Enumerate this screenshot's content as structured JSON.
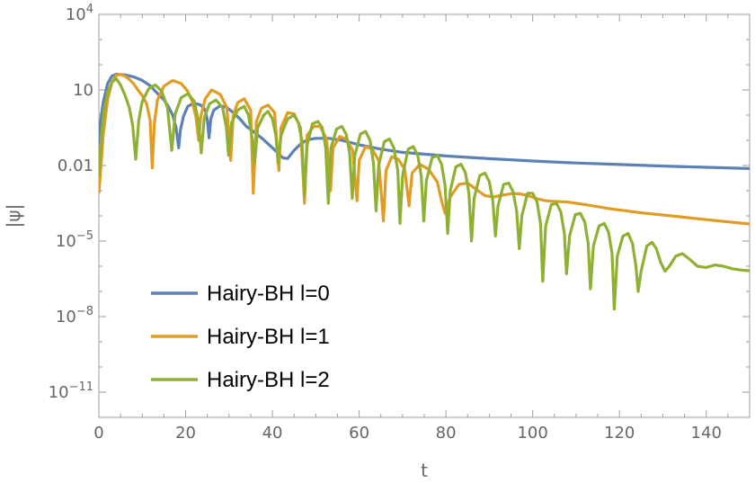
{
  "chart_data": {
    "type": "line",
    "xlabel": "t",
    "ylabel": "|ψ|",
    "xlim": [
      0,
      150
    ],
    "ylim_log10": [
      -12,
      4
    ],
    "y_scale": "log",
    "legend_position": "bottom-left",
    "grid": false,
    "x_ticks": [
      {
        "value": 0,
        "label": "0"
      },
      {
        "value": 20,
        "label": "20"
      },
      {
        "value": 40,
        "label": "40"
      },
      {
        "value": 60,
        "label": "60"
      },
      {
        "value": 80,
        "label": "80"
      },
      {
        "value": 100,
        "label": "100"
      },
      {
        "value": 120,
        "label": "120"
      },
      {
        "value": 140,
        "label": "140"
      }
    ],
    "y_ticks": [
      {
        "log10": 4,
        "base": "10",
        "exp": "4"
      },
      {
        "log10": 1,
        "base": "10",
        "exp": ""
      },
      {
        "log10": -2,
        "base": "0.01",
        "exp": ""
      },
      {
        "log10": -5,
        "base": "10",
        "exp": "−5"
      },
      {
        "log10": -8,
        "base": "10",
        "exp": "−8"
      },
      {
        "log10": -11,
        "base": "10",
        "exp": "−11"
      }
    ],
    "series": [
      {
        "name": "Hairy-BH l=0",
        "color": "#5e81b5",
        "points": [
          [
            0,
            -1.2
          ],
          [
            0.5,
            -0.1
          ],
          [
            1,
            0.5
          ],
          [
            2,
            1.25
          ],
          [
            3,
            1.55
          ],
          [
            4,
            1.62
          ],
          [
            6,
            1.6
          ],
          [
            8,
            1.52
          ],
          [
            10,
            1.38
          ],
          [
            12,
            1.15
          ],
          [
            13,
            0.95
          ],
          [
            14,
            0.78
          ],
          [
            15,
            0.6
          ],
          [
            16,
            0.35
          ],
          [
            17,
            0
          ],
          [
            17.8,
            -0.5
          ],
          [
            18.4,
            -1.3
          ],
          [
            18.8,
            -0.6
          ],
          [
            19.5,
            -0.05
          ],
          [
            20.5,
            0.35
          ],
          [
            22,
            0.48
          ],
          [
            23.5,
            0.4
          ],
          [
            24.5,
            0.2
          ],
          [
            25,
            -0.2
          ],
          [
            25.4,
            -0.9
          ],
          [
            25.8,
            -0.15
          ],
          [
            26.5,
            0.2
          ],
          [
            28,
            0.37
          ],
          [
            29.5,
            0.3
          ],
          [
            31,
            0.1
          ],
          [
            32.5,
            -0.15
          ],
          [
            34,
            -0.45
          ],
          [
            36,
            -0.7
          ],
          [
            38,
            -0.98
          ],
          [
            40,
            -1.3
          ],
          [
            41.5,
            -1.55
          ],
          [
            42.5,
            -1.7
          ],
          [
            43.5,
            -1.72
          ],
          [
            45,
            -1.4
          ],
          [
            46.5,
            -1.15
          ],
          [
            48,
            -0.98
          ],
          [
            50,
            -0.92
          ],
          [
            53,
            -0.92
          ],
          [
            56,
            -1.0
          ],
          [
            60,
            -1.18
          ],
          [
            65,
            -1.35
          ],
          [
            70,
            -1.48
          ],
          [
            80,
            -1.62
          ],
          [
            90,
            -1.73
          ],
          [
            100,
            -1.82
          ],
          [
            110,
            -1.9
          ],
          [
            120,
            -1.96
          ],
          [
            130,
            -2.02
          ],
          [
            140,
            -2.07
          ],
          [
            150,
            -2.12
          ]
        ]
      },
      {
        "name": "Hairy-BH l=1",
        "color": "#e19c24",
        "points": [
          [
            0,
            -3.1
          ],
          [
            0.5,
            -2.0
          ],
          [
            1,
            -0.8
          ],
          [
            2,
            0.6
          ],
          [
            3,
            1.3
          ],
          [
            4,
            1.58
          ],
          [
            5,
            1.62
          ],
          [
            6,
            1.55
          ],
          [
            7,
            1.42
          ],
          [
            8,
            1.25
          ],
          [
            9,
            1.0
          ],
          [
            10,
            0.78
          ],
          [
            11,
            0.45
          ],
          [
            11.8,
            -0.2
          ],
          [
            12.3,
            -2.1
          ],
          [
            12.8,
            -0.3
          ],
          [
            13.5,
            0.6
          ],
          [
            15,
            1.15
          ],
          [
            17,
            1.38
          ],
          [
            19,
            1.25
          ],
          [
            20.5,
            0.95
          ],
          [
            21.5,
            0.55
          ],
          [
            22.4,
            -0.1
          ],
          [
            23,
            -1.0
          ],
          [
            23.5,
            -0.05
          ],
          [
            24.5,
            0.65
          ],
          [
            26,
            1.0
          ],
          [
            28,
            0.82
          ],
          [
            29.5,
            0.3
          ],
          [
            30.4,
            -1.8
          ],
          [
            31,
            0
          ],
          [
            32,
            0.5
          ],
          [
            33.5,
            0.65
          ],
          [
            35,
            0.2
          ],
          [
            35.6,
            -3.1
          ],
          [
            36.3,
            -0.25
          ],
          [
            37.5,
            0.28
          ],
          [
            39,
            0.4
          ],
          [
            40.5,
            0.1
          ],
          [
            41.5,
            -2.2
          ],
          [
            42,
            -0.5
          ],
          [
            43.5,
            0.1
          ],
          [
            45,
            0.05
          ],
          [
            46.5,
            -0.5
          ],
          [
            47.4,
            -3.5
          ],
          [
            48,
            -0.8
          ],
          [
            49.5,
            -0.45
          ],
          [
            51,
            -0.45
          ],
          [
            52.5,
            -0.95
          ],
          [
            53.4,
            -3.0
          ],
          [
            54,
            -1.3
          ],
          [
            55.5,
            -0.85
          ],
          [
            57,
            -0.95
          ],
          [
            58.5,
            -1.4
          ],
          [
            59.5,
            -3.4
          ],
          [
            60,
            -1.8
          ],
          [
            61.5,
            -1.25
          ],
          [
            63,
            -1.35
          ],
          [
            64.5,
            -1.8
          ],
          [
            65.6,
            -4.2
          ],
          [
            66.2,
            -2.2
          ],
          [
            67.5,
            -1.65
          ],
          [
            69,
            -1.75
          ],
          [
            70.5,
            -2.15
          ],
          [
            71.5,
            -3.6
          ],
          [
            72.2,
            -2.3
          ],
          [
            74,
            -1.95
          ],
          [
            76,
            -2.15
          ],
          [
            78,
            -2.65
          ],
          [
            79,
            -3.4
          ],
          [
            79.8,
            -3.9
          ],
          [
            81,
            -3.25
          ],
          [
            83,
            -2.75
          ],
          [
            85,
            -2.7
          ],
          [
            87,
            -2.95
          ],
          [
            89,
            -3.2
          ],
          [
            91,
            -3.25
          ],
          [
            93,
            -3.18
          ],
          [
            95,
            -3.12
          ],
          [
            97,
            -3.12
          ],
          [
            99,
            -3.2
          ],
          [
            101,
            -3.32
          ],
          [
            103,
            -3.4
          ],
          [
            105,
            -3.42
          ],
          [
            108,
            -3.45
          ],
          [
            112,
            -3.55
          ],
          [
            118,
            -3.72
          ],
          [
            125,
            -3.88
          ],
          [
            132,
            -4.0
          ],
          [
            140,
            -4.15
          ],
          [
            150,
            -4.32
          ]
        ]
      },
      {
        "name": "Hairy-BH l=2",
        "color": "#8fb032",
        "points": [
          [
            0,
            -2.4
          ],
          [
            0.6,
            -0.8
          ],
          [
            1.2,
            0.2
          ],
          [
            2,
            0.9
          ],
          [
            3,
            1.3
          ],
          [
            4,
            1.45
          ],
          [
            5,
            1.2
          ],
          [
            6,
            0.8
          ],
          [
            7,
            0.3
          ],
          [
            7.8,
            -0.4
          ],
          [
            8.5,
            -1.75
          ],
          [
            9.2,
            -0.2
          ],
          [
            10,
            0.55
          ],
          [
            11.5,
            1.05
          ],
          [
            13,
            1.2
          ],
          [
            14.5,
            0.95
          ],
          [
            15.8,
            0.3
          ],
          [
            16.8,
            -1.4
          ],
          [
            17.6,
            0.05
          ],
          [
            19,
            0.7
          ],
          [
            20.5,
            0.85
          ],
          [
            22,
            0.55
          ],
          [
            23,
            -0.3
          ],
          [
            23.6,
            -1.5
          ],
          [
            24.3,
            -0.1
          ],
          [
            25.5,
            0.45
          ],
          [
            27,
            0.6
          ],
          [
            28.5,
            0.3
          ],
          [
            29.4,
            -0.5
          ],
          [
            29.9,
            -1.6
          ],
          [
            30.6,
            -0.3
          ],
          [
            32,
            0.2
          ],
          [
            33.5,
            0.35
          ],
          [
            34.5,
            0
          ],
          [
            35.4,
            -1.0
          ],
          [
            35.9,
            -1.9
          ],
          [
            36.6,
            -0.5
          ],
          [
            38,
            0
          ],
          [
            39,
            0.15
          ],
          [
            40,
            -0.15
          ],
          [
            40.8,
            -0.8
          ],
          [
            41.3,
            -1.9
          ],
          [
            42,
            -0.8
          ],
          [
            43.5,
            -0.15
          ],
          [
            45,
            0
          ],
          [
            46,
            -0.3
          ],
          [
            46.8,
            -1.0
          ],
          [
            47.4,
            -3.2
          ],
          [
            48,
            -1.2
          ],
          [
            49.2,
            -0.35
          ],
          [
            50.5,
            -0.25
          ],
          [
            51.5,
            -0.5
          ],
          [
            52.3,
            -1.3
          ],
          [
            52.9,
            -3.5
          ],
          [
            53.5,
            -1.3
          ],
          [
            54.8,
            -0.55
          ],
          [
            56,
            -0.45
          ],
          [
            57,
            -0.75
          ],
          [
            57.8,
            -1.5
          ],
          [
            58.4,
            -3.3
          ],
          [
            59,
            -1.6
          ],
          [
            60.3,
            -0.75
          ],
          [
            61.5,
            -0.65
          ],
          [
            62.5,
            -1.0
          ],
          [
            63.3,
            -1.9
          ],
          [
            63.9,
            -3.8
          ],
          [
            64.5,
            -2.0
          ],
          [
            65.8,
            -1.05
          ],
          [
            67,
            -0.95
          ],
          [
            68,
            -1.3
          ],
          [
            68.9,
            -2.2
          ],
          [
            69.4,
            -4.3
          ],
          [
            70,
            -2.4
          ],
          [
            71.3,
            -1.35
          ],
          [
            72.5,
            -1.25
          ],
          [
            73.5,
            -1.6
          ],
          [
            74.3,
            -2.4
          ],
          [
            74.9,
            -4.2
          ],
          [
            75.5,
            -2.6
          ],
          [
            76.8,
            -1.7
          ],
          [
            78,
            -1.6
          ],
          [
            79,
            -1.95
          ],
          [
            79.8,
            -2.8
          ],
          [
            80.4,
            -4.7
          ],
          [
            81,
            -3.0
          ],
          [
            82.3,
            -2.05
          ],
          [
            83.5,
            -1.95
          ],
          [
            84.5,
            -2.3
          ],
          [
            85.3,
            -3.1
          ],
          [
            85.9,
            -5.0
          ],
          [
            86.5,
            -3.3
          ],
          [
            87.8,
            -2.4
          ],
          [
            89,
            -2.3
          ],
          [
            90,
            -2.65
          ],
          [
            90.8,
            -3.4
          ],
          [
            91.4,
            -4.8
          ],
          [
            92,
            -3.6
          ],
          [
            93.3,
            -2.75
          ],
          [
            94.5,
            -2.7
          ],
          [
            95.5,
            -3.05
          ],
          [
            96.3,
            -3.8
          ],
          [
            96.9,
            -5.3
          ],
          [
            97.5,
            -4.0
          ],
          [
            98.8,
            -3.1
          ],
          [
            100,
            -3.1
          ],
          [
            101,
            -3.45
          ],
          [
            101.8,
            -4.3
          ],
          [
            102.3,
            -6.6
          ],
          [
            103,
            -4.4
          ],
          [
            104.3,
            -3.55
          ],
          [
            105.5,
            -3.5
          ],
          [
            106.5,
            -3.85
          ],
          [
            107.3,
            -4.7
          ],
          [
            107.8,
            -6.3
          ],
          [
            108.5,
            -4.8
          ],
          [
            109.8,
            -3.95
          ],
          [
            111,
            -3.9
          ],
          [
            112,
            -4.25
          ],
          [
            112.8,
            -5.1
          ],
          [
            113.3,
            -6.9
          ],
          [
            114,
            -5.2
          ],
          [
            115.3,
            -4.4
          ],
          [
            116.5,
            -4.3
          ],
          [
            117.5,
            -4.65
          ],
          [
            118.3,
            -5.5
          ],
          [
            118.8,
            -7.7
          ],
          [
            119.5,
            -5.6
          ],
          [
            120.8,
            -4.8
          ],
          [
            122,
            -4.7
          ],
          [
            123,
            -5.1
          ],
          [
            123.8,
            -6.0
          ],
          [
            124.3,
            -7.0
          ],
          [
            125,
            -6.2
          ],
          [
            126.3,
            -5.2
          ],
          [
            127.5,
            -5.05
          ],
          [
            128.5,
            -5.3
          ],
          [
            129.5,
            -5.85
          ],
          [
            130.5,
            -6.2
          ],
          [
            131.5,
            -6.0
          ],
          [
            133,
            -5.6
          ],
          [
            134.5,
            -5.5
          ],
          [
            136,
            -5.7
          ],
          [
            138,
            -6.0
          ],
          [
            140,
            -6.05
          ],
          [
            142,
            -5.95
          ],
          [
            144,
            -6.0
          ],
          [
            146,
            -6.1
          ],
          [
            148,
            -6.15
          ],
          [
            150,
            -6.18
          ]
        ]
      }
    ]
  }
}
